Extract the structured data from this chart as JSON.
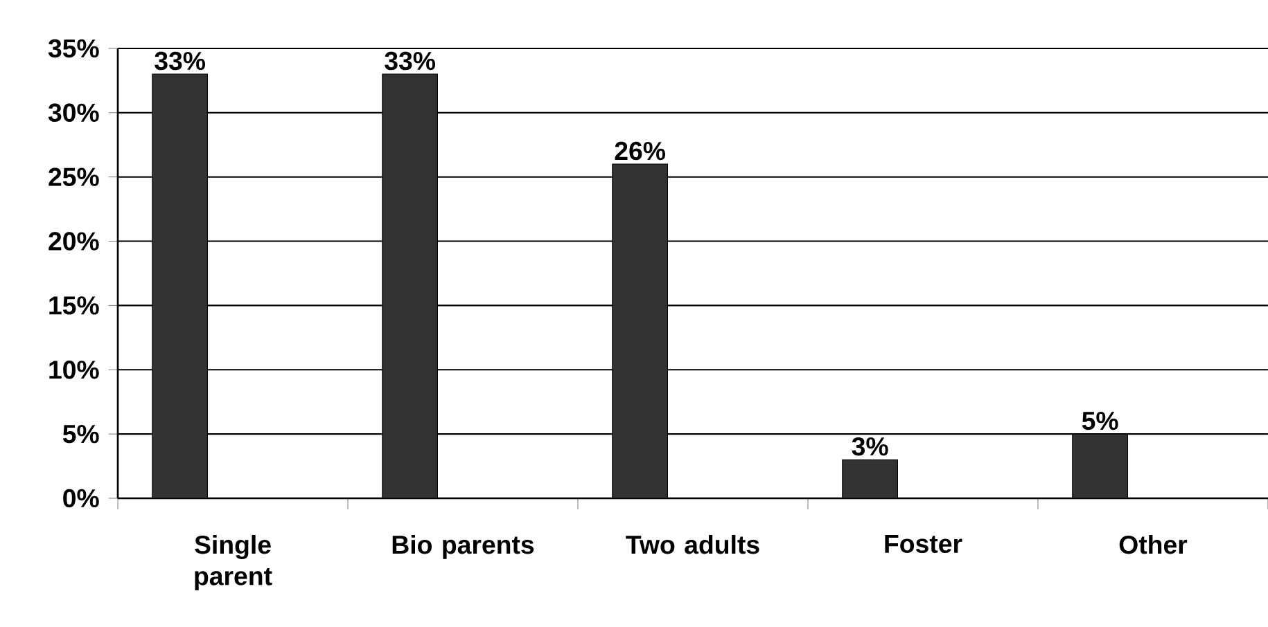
{
  "chart_data": {
    "type": "bar",
    "categories": [
      "Single parent",
      "Bio parents",
      "Two adults",
      "Foster",
      "Other"
    ],
    "values": [
      33,
      33,
      26,
      3,
      5
    ],
    "value_labels": [
      "33%",
      "33%",
      "26%",
      "3%",
      "5%"
    ],
    "color": "#333333",
    "ylim": [
      0,
      35
    ],
    "yticks": [
      {
        "value": 0,
        "label": "0%"
      },
      {
        "value": 5,
        "label": "5%"
      },
      {
        "value": 10,
        "label": "10%"
      },
      {
        "value": 15,
        "label": "15%"
      },
      {
        "value": 20,
        "label": "20%"
      },
      {
        "value": 25,
        "label": "25%"
      },
      {
        "value": 30,
        "label": "30%"
      },
      {
        "value": 35,
        "label": "35%"
      }
    ],
    "grid": "y"
  }
}
